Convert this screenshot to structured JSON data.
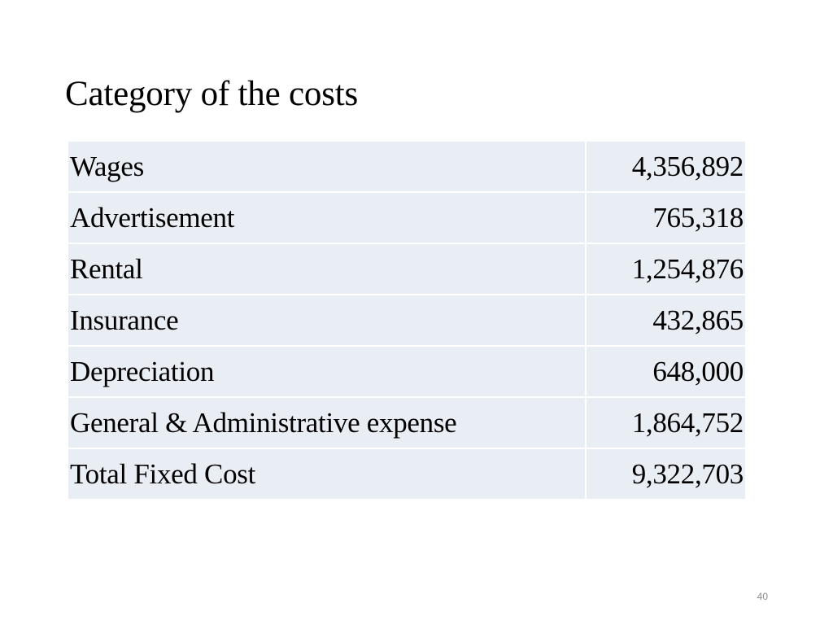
{
  "slide": {
    "title": "Category of the costs",
    "page_number": "40"
  },
  "table": {
    "rows": [
      {
        "label": "Wages",
        "value": "4,356,892"
      },
      {
        "label": "Advertisement",
        "value": "765,318"
      },
      {
        "label": "Rental",
        "value": "1,254,876"
      },
      {
        "label": "Insurance",
        "value": "432,865"
      },
      {
        "label": "Depreciation",
        "value": "648,000"
      },
      {
        "label": "General & Administrative expense",
        "value": "1,864,752"
      },
      {
        "label": "Total Fixed Cost",
        "value": "9,322,703"
      }
    ]
  },
  "colors": {
    "cell_background": "#e9eef5",
    "page_number": "#8c8c8c"
  }
}
